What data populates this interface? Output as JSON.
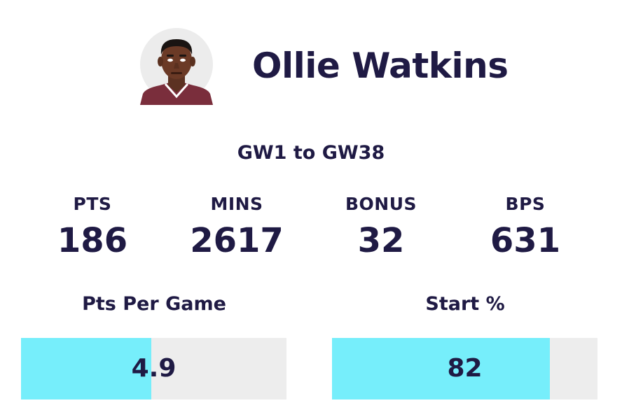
{
  "player": {
    "name": "Ollie Watkins",
    "avatar_icon": "player-avatar-icon"
  },
  "range": "GW1 to GW38",
  "stats": [
    {
      "label": "PTS",
      "value": "186"
    },
    {
      "label": "MINS",
      "value": "2617"
    },
    {
      "label": "BONUS",
      "value": "32"
    },
    {
      "label": "BPS",
      "value": "631"
    }
  ],
  "bars": [
    {
      "title": "Pts Per Game",
      "value": "4.9",
      "fill_fraction": 0.49
    },
    {
      "title": "Start %",
      "value": "82",
      "fill_fraction": 0.82
    }
  ],
  "colors": {
    "text": "#1f1a44",
    "bar_fill": "#76eefb",
    "bar_track": "#ededed",
    "shirt": "#7a2e3c"
  }
}
